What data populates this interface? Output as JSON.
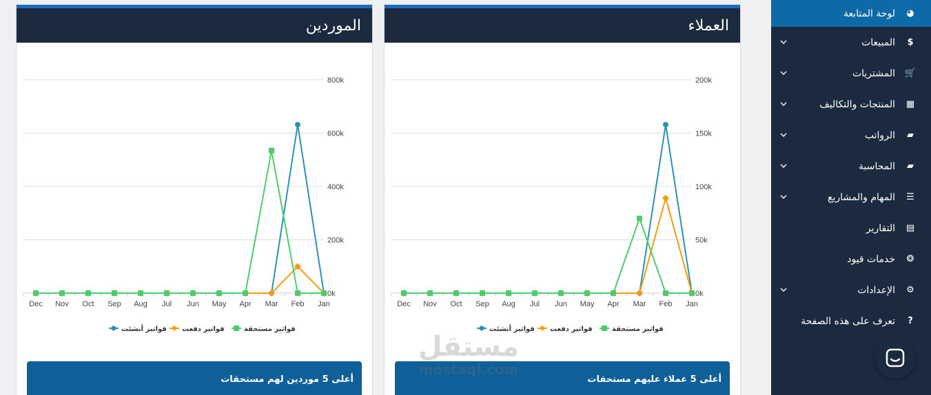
{
  "sidebar": {
    "items": [
      {
        "label": "لوحة المتابعة",
        "icon": "dashboard-icon",
        "glyph": "◕",
        "chevron": false
      },
      {
        "label": "المبيعات",
        "icon": "dollar-icon",
        "glyph": "$",
        "chevron": true
      },
      {
        "label": "المشتريات",
        "icon": "cart-icon",
        "glyph": "🛒",
        "chevron": true
      },
      {
        "label": "المنتجات والتكاليف",
        "icon": "grid-icon",
        "glyph": "▦",
        "chevron": true
      },
      {
        "label": "الرواتب",
        "icon": "folder-open-icon",
        "glyph": "▰",
        "chevron": true
      },
      {
        "label": "المحاسبة",
        "icon": "folder-open-icon",
        "glyph": "▰",
        "chevron": true
      },
      {
        "label": "المهام والمشاريع",
        "icon": "list-icon",
        "glyph": "☰",
        "chevron": true
      },
      {
        "label": "التقارير",
        "icon": "file-icon",
        "glyph": "▤",
        "chevron": false
      },
      {
        "label": "خدمات قيود",
        "icon": "lifering-icon",
        "glyph": "❂",
        "chevron": false
      },
      {
        "label": "الإعدادات",
        "icon": "gear-icon",
        "glyph": "⚙",
        "chevron": true
      },
      {
        "label": "تعرف على هذه الصفحة",
        "icon": "question-icon",
        "glyph": "?",
        "chevron": false
      }
    ]
  },
  "colors": {
    "created": "#2d8fb8",
    "paid": "#f39c12",
    "due": "#4ccc6c",
    "sidebar": "#1c2a3f",
    "header": "#1b2a3f",
    "footer": "#0f5f99"
  },
  "cards": {
    "suppliers": {
      "title": "الموردين",
      "footer": "أعلى 5 موردين لهم مستحقات",
      "legend": [
        "فواتير أنشئت",
        "فواتير دفعت",
        "فواتير مستحقة"
      ]
    },
    "customers": {
      "title": "العملاء",
      "footer": "أعلى 5 عملاء عليهم مستحقات",
      "legend": [
        "فواتير أنشئت",
        "فواتير دفعت",
        "فواتير مستحقة"
      ]
    }
  },
  "watermark": {
    "line1": "مستقل",
    "line2": "mostaql.com"
  },
  "chart_data": [
    {
      "type": "line",
      "title": "الموردين",
      "categories": [
        "Dec",
        "Nov",
        "Oct",
        "Sep",
        "Aug",
        "Jul",
        "Jun",
        "May",
        "Apr",
        "Mar",
        "Feb",
        "Jan"
      ],
      "ylim": [
        0,
        800000
      ],
      "yticks": [
        "0k",
        "200k",
        "400k",
        "600k",
        "800k"
      ],
      "grid": true,
      "legend_position": "bottom",
      "series": [
        {
          "name": "فواتير أنشئت",
          "color": "#2d8fb8",
          "marker": "circle",
          "values": [
            0,
            0,
            0,
            0,
            0,
            0,
            0,
            0,
            0,
            0,
            632000,
            0
          ]
        },
        {
          "name": "فواتير دفعت",
          "color": "#f39c12",
          "marker": "diamond",
          "values": [
            0,
            0,
            0,
            0,
            0,
            0,
            0,
            0,
            0,
            0,
            100000,
            0
          ]
        },
        {
          "name": "فواتير مستحقة",
          "color": "#4ccc6c",
          "marker": "square",
          "values": [
            0,
            0,
            0,
            0,
            0,
            0,
            0,
            0,
            0,
            535000,
            0,
            0
          ]
        }
      ]
    },
    {
      "type": "line",
      "title": "العملاء",
      "categories": [
        "Dec",
        "Nov",
        "Oct",
        "Sep",
        "Aug",
        "Jul",
        "Jun",
        "May",
        "Apr",
        "Mar",
        "Feb",
        "Jan"
      ],
      "ylim": [
        0,
        200000
      ],
      "yticks": [
        "0k",
        "50k",
        "100k",
        "150k",
        "200k"
      ],
      "grid": true,
      "legend_position": "bottom",
      "series": [
        {
          "name": "فواتير أنشئت",
          "color": "#2d8fb8",
          "marker": "circle",
          "values": [
            0,
            0,
            0,
            0,
            0,
            0,
            0,
            0,
            0,
            0,
            158000,
            0
          ]
        },
        {
          "name": "فواتير دفعت",
          "color": "#f39c12",
          "marker": "diamond",
          "values": [
            0,
            0,
            0,
            0,
            0,
            0,
            0,
            0,
            0,
            0,
            89000,
            0
          ]
        },
        {
          "name": "فواتير مستحقة",
          "color": "#4ccc6c",
          "marker": "square",
          "values": [
            0,
            0,
            0,
            0,
            0,
            0,
            0,
            0,
            0,
            70000,
            0,
            0
          ]
        }
      ]
    }
  ]
}
